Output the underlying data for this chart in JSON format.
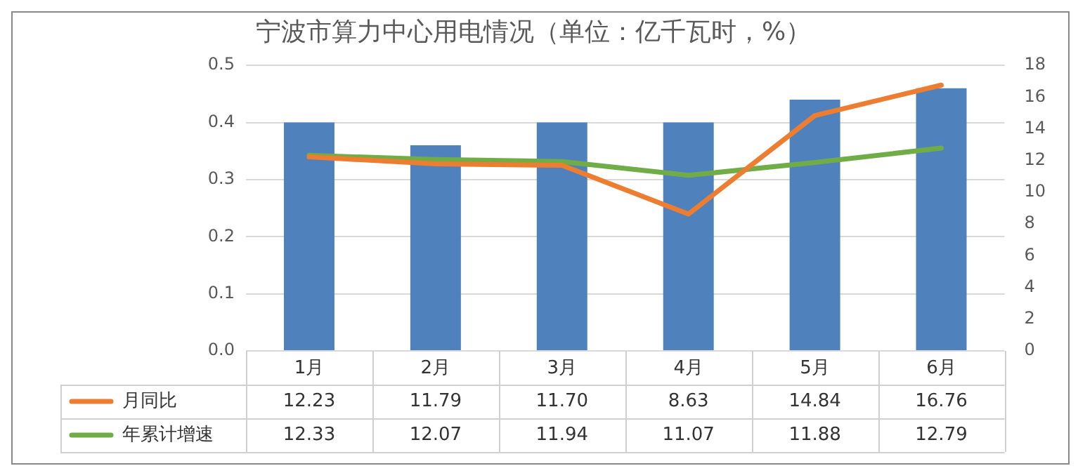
{
  "chart_data": {
    "type": "bar",
    "title": "宁波市算力中心用电情况（单位：亿千瓦时，%）",
    "categories": [
      "1月",
      "2月",
      "3月",
      "4月",
      "5月",
      "6月"
    ],
    "series": [
      {
        "color": "#4f81bd",
        "values": [
          0.4,
          0.36,
          0.4,
          0.4,
          0.44,
          0.46
        ]
      },
      {
        "type": "line",
        "name": "月同比",
        "color": "#ed7d31",
        "axis": "y2",
        "values": [
          12.23,
          11.79,
          11.7,
          8.63,
          14.84,
          16.76
        ],
        "value_labels": [
          "12.23",
          "11.79",
          "11.70",
          "8.63",
          "14.84",
          "16.76"
        ]
      },
      {
        "type": "line",
        "name": "年累计增速",
        "color": "#70ad47",
        "axis": "y2",
        "values": [
          12.33,
          12.07,
          11.94,
          11.07,
          11.88,
          12.79
        ],
        "value_labels": [
          "12.33",
          "12.07",
          "11.94",
          "11.07",
          "11.88",
          "12.79"
        ]
      }
    ],
    "ylim": [
      0,
      0.5
    ],
    "yticks": [
      {
        "value": 0,
        "label": "0.0"
      },
      0.1,
      0.2,
      0.3,
      0.4,
      0.5
    ],
    "y2lim": [
      0,
      18
    ],
    "y2ticks": [
      0,
      2,
      4,
      6,
      8,
      10,
      12,
      14,
      16,
      18
    ],
    "grid": "y",
    "legend": "bottom",
    "marker": "none"
  }
}
